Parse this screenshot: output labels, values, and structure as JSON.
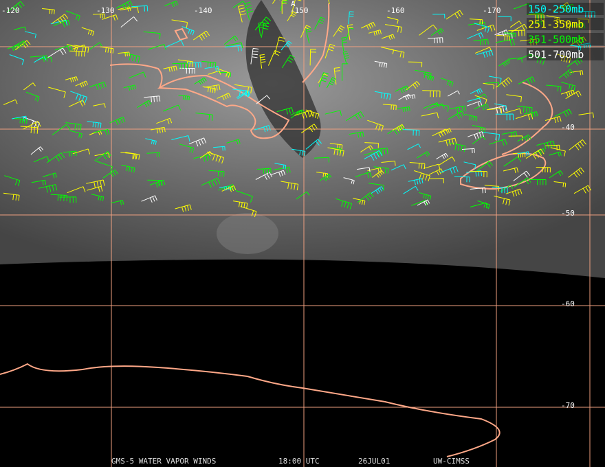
{
  "map": {
    "longitude_labels": [
      "-120",
      "-130",
      "-140",
      "-150",
      "-160",
      "-170"
    ],
    "latitude_labels": [
      "-40",
      "-50",
      "-60",
      "-70"
    ],
    "marker": "A",
    "legend": [
      {
        "label": "150-250mb",
        "color": "#00ffff"
      },
      {
        "label": "251-350mb",
        "color": "#ffff00"
      },
      {
        "label": "351-500mb",
        "color": "#00ff00"
      },
      {
        "label": "501-700mb",
        "color": "#ffffff"
      }
    ],
    "footer": [
      "GMS-5 WATER VAPOR WINDS",
      "18:00 UTC",
      "26JUL01",
      "UW-CIMSS"
    ]
  }
}
